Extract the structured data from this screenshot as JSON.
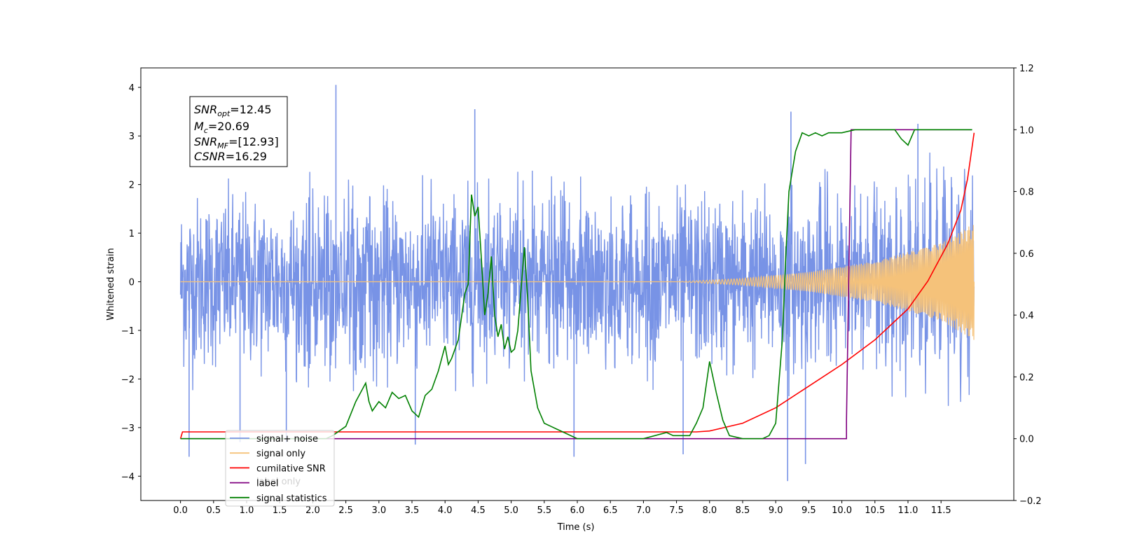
{
  "chart_data": {
    "type": "line",
    "xlabel": "Time (s)",
    "ylabel": "Whitened strain",
    "xlim": [
      -0.6,
      12.6
    ],
    "ylim": [
      -4.5,
      4.4
    ],
    "y2lim": [
      -0.2,
      1.2
    ],
    "x_ticks": [
      "0.0",
      "0.5",
      "1.0",
      "1.5",
      "2.0",
      "2.5",
      "3.0",
      "3.5",
      "4.0",
      "4.5",
      "5.0",
      "5.5",
      "6.0",
      "6.5",
      "7.0",
      "7.5",
      "8.0",
      "8.5",
      "9.0",
      "9.5",
      "10.0",
      "10.5",
      "11.0",
      "11.5"
    ],
    "y_ticks": [
      "4",
      "3",
      "2",
      "1",
      "0",
      "−1",
      "−2",
      "−3",
      "−4"
    ],
    "y2_ticks": [
      "1.2",
      "1.0",
      "0.8",
      "0.6",
      "0.4",
      "0.2",
      "0.0",
      "−0.2"
    ],
    "info_box": {
      "snr_opt": {
        "symbol": "SNR",
        "sub": "opt",
        "value": "=12.45"
      },
      "mc": {
        "symbol": "M",
        "sub": "c",
        "value": "=20.69"
      },
      "snr_mf": {
        "symbol": "SNR",
        "sub": "MF",
        "value": "=[12.93]"
      },
      "csnr": {
        "symbol": "CSNR",
        "sub": "",
        "value": "=16.29"
      }
    },
    "legend_position": "lower left",
    "legend": [
      {
        "label": "signal+ noise",
        "color": "#7893e6"
      },
      {
        "label": "signal only",
        "color": "#f5c27a"
      },
      {
        "label": "cumilative SNR",
        "color": "#ff0000"
      },
      {
        "label": "label",
        "color": "#800080"
      },
      {
        "label": "signal statistics",
        "color": "#008000"
      }
    ],
    "hidden_legend_text": "label only",
    "series": [
      {
        "name": "signal+ noise",
        "axis": "left",
        "color": "#7893e6",
        "x_range": [
          0.0,
          12.0
        ],
        "noise_band": [
          -2.3,
          2.3
        ],
        "spikes": [
          [
            0.13,
            -3.6
          ],
          [
            0.9,
            -3.3
          ],
          [
            1.6,
            -3.3
          ],
          [
            2.35,
            4.05
          ],
          [
            3.55,
            -3.35
          ],
          [
            4.45,
            3.55
          ],
          [
            5.95,
            -3.6
          ],
          [
            7.6,
            -3.55
          ],
          [
            9.18,
            -4.1
          ],
          [
            9.23,
            3.5
          ],
          [
            9.45,
            -3.75
          ],
          [
            11.15,
            3.25
          ]
        ]
      },
      {
        "name": "signal only",
        "axis": "left",
        "color": "#f5c27a",
        "x_range": [
          0.0,
          12.0
        ],
        "envelope": [
          [
            7.5,
            0.0
          ],
          [
            8.5,
            0.07
          ],
          [
            9.5,
            0.2
          ],
          [
            10.5,
            0.42
          ],
          [
            11.5,
            0.8
          ],
          [
            12.0,
            1.2
          ]
        ]
      },
      {
        "name": "cumilative SNR",
        "axis": "right",
        "color": "#ff0000",
        "x": [
          0.0,
          0.03,
          7.8,
          8.0,
          8.5,
          9.0,
          9.5,
          10.0,
          10.5,
          11.0,
          11.3,
          11.6,
          11.8,
          11.9,
          12.0
        ],
        "y": [
          0.0,
          0.022,
          0.022,
          0.025,
          0.05,
          0.1,
          0.17,
          0.24,
          0.32,
          0.42,
          0.51,
          0.63,
          0.74,
          0.84,
          0.99
        ]
      },
      {
        "name": "label",
        "axis": "right",
        "color": "#800080",
        "x": [
          0.0,
          10.07,
          10.07,
          10.14,
          11.97
        ],
        "y": [
          0.0,
          0.0,
          0.06,
          1.0,
          1.0
        ]
      },
      {
        "name": "signal statistics",
        "axis": "right",
        "color": "#008000",
        "x": [
          0.0,
          2.2,
          2.3,
          2.5,
          2.65,
          2.8,
          2.85,
          2.9,
          3.0,
          3.1,
          3.2,
          3.3,
          3.4,
          3.5,
          3.6,
          3.7,
          3.8,
          3.9,
          4.0,
          4.05,
          4.1,
          4.2,
          4.3,
          4.35,
          4.4,
          4.45,
          4.5,
          4.55,
          4.6,
          4.65,
          4.7,
          4.75,
          4.8,
          4.85,
          4.9,
          4.95,
          5.0,
          5.05,
          5.1,
          5.2,
          5.25,
          5.3,
          5.4,
          5.5,
          5.6,
          5.7,
          5.8,
          6.0,
          6.5,
          7.0,
          7.35,
          7.45,
          7.6,
          7.7,
          7.8,
          7.9,
          8.0,
          8.05,
          8.1,
          8.2,
          8.3,
          8.5,
          8.8,
          8.9,
          9.0,
          9.1,
          9.15,
          9.2,
          9.3,
          9.4,
          9.5,
          9.6,
          9.7,
          9.8,
          10.0,
          10.2,
          10.5,
          10.8,
          10.9,
          11.0,
          11.1,
          11.2,
          11.5,
          11.97
        ],
        "y": [
          0.0,
          0.0,
          0.01,
          0.04,
          0.12,
          0.18,
          0.12,
          0.09,
          0.12,
          0.1,
          0.15,
          0.13,
          0.14,
          0.09,
          0.07,
          0.14,
          0.16,
          0.22,
          0.3,
          0.24,
          0.26,
          0.32,
          0.47,
          0.5,
          0.79,
          0.72,
          0.75,
          0.58,
          0.4,
          0.47,
          0.59,
          0.4,
          0.33,
          0.37,
          0.29,
          0.33,
          0.28,
          0.29,
          0.35,
          0.62,
          0.45,
          0.22,
          0.1,
          0.05,
          0.04,
          0.03,
          0.02,
          0.0,
          0.0,
          0.0,
          0.02,
          0.01,
          0.01,
          0.01,
          0.05,
          0.1,
          0.25,
          0.2,
          0.15,
          0.06,
          0.01,
          0.0,
          0.0,
          0.01,
          0.05,
          0.32,
          0.58,
          0.8,
          0.93,
          0.99,
          0.98,
          0.99,
          0.98,
          0.99,
          0.99,
          1.0,
          1.0,
          1.0,
          0.97,
          0.95,
          1.0,
          1.0,
          1.0,
          1.0
        ]
      }
    ]
  }
}
